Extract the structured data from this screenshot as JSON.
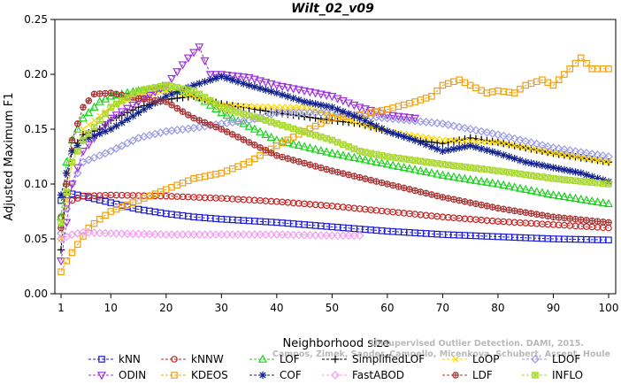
{
  "chart_data": {
    "type": "line",
    "title": "Wilt_02_v09",
    "xlabel": "Neighborhood size",
    "ylabel": "Adjusted Maximum F1",
    "xlim": [
      1,
      100
    ],
    "ylim": [
      0,
      0.25
    ],
    "x_ticks": [
      "1",
      "10",
      "20",
      "30",
      "40",
      "50",
      "60",
      "70",
      "80",
      "90",
      "100"
    ],
    "y_ticks": [
      "0.00",
      "0.05",
      "0.10",
      "0.15",
      "0.20",
      "0.25"
    ],
    "legend_position": "bottom",
    "watermark": [
      "Unsupervised Outlier Detection. DAMI, 2015.",
      "Campos, Zimek, Sander, Campello, Micenkova, Schubert, Assent, Houle"
    ],
    "series": [
      {
        "name": "kNN",
        "color": "#1a1ad6",
        "marker": "square",
        "points": [
          [
            1,
            0.085
          ],
          [
            2,
            0.09
          ],
          [
            3,
            0.091
          ],
          [
            5,
            0.089
          ],
          [
            10,
            0.083
          ],
          [
            15,
            0.077
          ],
          [
            20,
            0.073
          ],
          [
            25,
            0.07
          ],
          [
            30,
            0.068
          ],
          [
            40,
            0.065
          ],
          [
            50,
            0.061
          ],
          [
            60,
            0.057
          ],
          [
            70,
            0.054
          ],
          [
            80,
            0.052
          ],
          [
            90,
            0.05
          ],
          [
            100,
            0.049
          ]
        ]
      },
      {
        "name": "kNNW",
        "color": "#c81e1e",
        "marker": "circle",
        "points": [
          [
            1,
            0.07
          ],
          [
            3,
            0.085
          ],
          [
            5,
            0.089
          ],
          [
            10,
            0.09
          ],
          [
            20,
            0.089
          ],
          [
            30,
            0.087
          ],
          [
            40,
            0.084
          ],
          [
            50,
            0.08
          ],
          [
            60,
            0.075
          ],
          [
            70,
            0.07
          ],
          [
            80,
            0.066
          ],
          [
            90,
            0.063
          ],
          [
            100,
            0.06
          ]
        ]
      },
      {
        "name": "LOF",
        "color": "#1fd11f",
        "marker": "triangle",
        "points": [
          [
            1,
            0.07
          ],
          [
            2,
            0.12
          ],
          [
            3,
            0.14
          ],
          [
            5,
            0.16
          ],
          [
            8,
            0.175
          ],
          [
            10,
            0.18
          ],
          [
            15,
            0.185
          ],
          [
            20,
            0.188
          ],
          [
            25,
            0.182
          ],
          [
            30,
            0.165
          ],
          [
            40,
            0.14
          ],
          [
            50,
            0.128
          ],
          [
            60,
            0.118
          ],
          [
            70,
            0.108
          ],
          [
            80,
            0.1
          ],
          [
            90,
            0.09
          ],
          [
            100,
            0.082
          ]
        ]
      },
      {
        "name": "SimplifiedLOF",
        "color": "#000000",
        "marker": "plus",
        "points": [
          [
            1,
            0.04
          ],
          [
            2,
            0.1
          ],
          [
            3,
            0.13
          ],
          [
            5,
            0.145
          ],
          [
            8,
            0.15
          ],
          [
            10,
            0.158
          ],
          [
            15,
            0.17
          ],
          [
            20,
            0.177
          ],
          [
            25,
            0.18
          ],
          [
            30,
            0.173
          ],
          [
            40,
            0.165
          ],
          [
            50,
            0.158
          ],
          [
            55,
            0.155
          ],
          [
            60,
            0.148
          ],
          [
            65,
            0.14
          ],
          [
            70,
            0.137
          ],
          [
            75,
            0.142
          ],
          [
            80,
            0.138
          ],
          [
            90,
            0.128
          ],
          [
            100,
            0.12
          ]
        ]
      },
      {
        "name": "LoOP",
        "color": "#ffd700",
        "marker": "x",
        "points": [
          [
            1,
            0.05
          ],
          [
            3,
            0.12
          ],
          [
            5,
            0.15
          ],
          [
            10,
            0.17
          ],
          [
            15,
            0.18
          ],
          [
            20,
            0.185
          ],
          [
            25,
            0.18
          ],
          [
            30,
            0.172
          ],
          [
            40,
            0.17
          ],
          [
            45,
            0.17
          ],
          [
            50,
            0.163
          ],
          [
            55,
            0.155
          ],
          [
            60,
            0.148
          ],
          [
            70,
            0.14
          ],
          [
            80,
            0.138
          ],
          [
            90,
            0.128
          ],
          [
            100,
            0.12
          ]
        ]
      },
      {
        "name": "LDOF",
        "color": "#9a9ae6",
        "marker": "diamond",
        "points": [
          [
            1,
            0.055
          ],
          [
            3,
            0.1
          ],
          [
            5,
            0.12
          ],
          [
            10,
            0.13
          ],
          [
            15,
            0.142
          ],
          [
            20,
            0.148
          ],
          [
            25,
            0.151
          ],
          [
            30,
            0.155
          ],
          [
            35,
            0.158
          ],
          [
            40,
            0.165
          ],
          [
            50,
            0.165
          ],
          [
            60,
            0.16
          ],
          [
            70,
            0.155
          ],
          [
            80,
            0.145
          ],
          [
            90,
            0.133
          ],
          [
            100,
            0.125
          ]
        ]
      },
      {
        "name": "ODIN",
        "color": "#9d2fe0",
        "marker": "triangle-down",
        "points": [
          [
            1,
            0.03
          ],
          [
            3,
            0.1
          ],
          [
            5,
            0.13
          ],
          [
            10,
            0.16
          ],
          [
            15,
            0.175
          ],
          [
            20,
            0.19
          ],
          [
            24,
            0.215
          ],
          [
            26,
            0.225
          ],
          [
            28,
            0.2
          ],
          [
            30,
            0.2
          ],
          [
            35,
            0.197
          ],
          [
            40,
            0.19
          ],
          [
            45,
            0.185
          ],
          [
            50,
            0.18
          ],
          [
            55,
            0.17
          ],
          [
            60,
            0.163
          ],
          [
            65,
            0.16
          ]
        ]
      },
      {
        "name": "KDEOS",
        "color": "#f0a010",
        "marker": "square",
        "points": [
          [
            1,
            0.02
          ],
          [
            2,
            0.03
          ],
          [
            4,
            0.045
          ],
          [
            6,
            0.06
          ],
          [
            8,
            0.068
          ],
          [
            10,
            0.075
          ],
          [
            15,
            0.085
          ],
          [
            20,
            0.095
          ],
          [
            25,
            0.105
          ],
          [
            30,
            0.11
          ],
          [
            35,
            0.12
          ],
          [
            40,
            0.135
          ],
          [
            45,
            0.148
          ],
          [
            50,
            0.16
          ],
          [
            55,
            0.163
          ],
          [
            60,
            0.168
          ],
          [
            65,
            0.175
          ],
          [
            68,
            0.18
          ],
          [
            70,
            0.19
          ],
          [
            73,
            0.195
          ],
          [
            75,
            0.19
          ],
          [
            78,
            0.183
          ],
          [
            80,
            0.185
          ],
          [
            83,
            0.183
          ],
          [
            85,
            0.19
          ],
          [
            88,
            0.195
          ],
          [
            90,
            0.19
          ],
          [
            92,
            0.2
          ],
          [
            95,
            0.215
          ],
          [
            97,
            0.205
          ],
          [
            100,
            0.205
          ]
        ]
      },
      {
        "name": "COF",
        "color": "#10208c",
        "marker": "star",
        "points": [
          [
            1,
            0.09
          ],
          [
            3,
            0.13
          ],
          [
            5,
            0.14
          ],
          [
            10,
            0.15
          ],
          [
            15,
            0.165
          ],
          [
            20,
            0.18
          ],
          [
            25,
            0.19
          ],
          [
            30,
            0.198
          ],
          [
            35,
            0.19
          ],
          [
            40,
            0.183
          ],
          [
            45,
            0.175
          ],
          [
            50,
            0.17
          ],
          [
            55,
            0.16
          ],
          [
            60,
            0.148
          ],
          [
            65,
            0.14
          ],
          [
            70,
            0.13
          ],
          [
            75,
            0.135
          ],
          [
            80,
            0.128
          ],
          [
            85,
            0.12
          ],
          [
            90,
            0.115
          ],
          [
            95,
            0.11
          ],
          [
            100,
            0.102
          ]
        ]
      },
      {
        "name": "FastABOD",
        "color": "#f29ef2",
        "marker": "diamond",
        "points": [
          [
            1,
            0.05
          ],
          [
            3,
            0.054
          ],
          [
            5,
            0.056
          ],
          [
            10,
            0.055
          ],
          [
            20,
            0.054
          ],
          [
            30,
            0.054
          ],
          [
            40,
            0.054
          ],
          [
            50,
            0.053
          ],
          [
            55,
            0.053
          ]
        ]
      },
      {
        "name": "LDF",
        "color": "#a83232",
        "marker": "circle-plus",
        "points": [
          [
            1,
            0.06
          ],
          [
            3,
            0.14
          ],
          [
            5,
            0.17
          ],
          [
            7,
            0.182
          ],
          [
            10,
            0.183
          ],
          [
            15,
            0.178
          ],
          [
            20,
            0.175
          ],
          [
            25,
            0.16
          ],
          [
            30,
            0.15
          ],
          [
            35,
            0.138
          ],
          [
            40,
            0.126
          ],
          [
            50,
            0.112
          ],
          [
            60,
            0.1
          ],
          [
            70,
            0.088
          ],
          [
            80,
            0.078
          ],
          [
            90,
            0.07
          ],
          [
            100,
            0.065
          ]
        ]
      },
      {
        "name": "INFLO",
        "color": "#a9d82c",
        "marker": "star-box",
        "points": [
          [
            1,
            0.065
          ],
          [
            3,
            0.12
          ],
          [
            5,
            0.14
          ],
          [
            10,
            0.17
          ],
          [
            15,
            0.185
          ],
          [
            20,
            0.19
          ],
          [
            25,
            0.185
          ],
          [
            30,
            0.17
          ],
          [
            40,
            0.155
          ],
          [
            50,
            0.14
          ],
          [
            55,
            0.13
          ],
          [
            60,
            0.125
          ],
          [
            70,
            0.118
          ],
          [
            80,
            0.112
          ],
          [
            90,
            0.105
          ],
          [
            100,
            0.1
          ]
        ]
      }
    ]
  }
}
